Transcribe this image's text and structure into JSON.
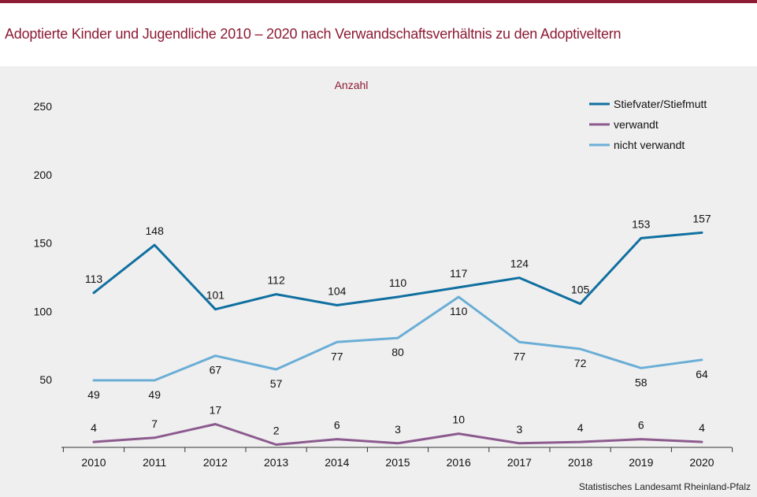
{
  "title": "Adoptierte Kinder und Jugendliche 2010 – 2020 nach Verwandschaftsverhältnis zu den Adoptiveltern",
  "source": "Statistisches Landesamt  Rheinland-Pfalz",
  "colors": {
    "accent": "#8c1b33",
    "background": "#efefef"
  },
  "chart_data": {
    "type": "line",
    "ylabel": "Anzahl",
    "xlabel": "",
    "ylim": [
      0,
      250
    ],
    "yticks": [
      "50",
      "100",
      "150",
      "200",
      "250"
    ],
    "categories": [
      "2010",
      "2011",
      "2012",
      "2013",
      "2014",
      "2015",
      "2016",
      "2017",
      "2018",
      "2019",
      "2020"
    ],
    "grid": false,
    "legend_position": "top-right",
    "series": [
      {
        "name": "Stiefvater/Stiefmutt",
        "color": "#0f6fa0",
        "values": [
          113,
          148,
          101,
          112,
          104,
          110,
          117,
          124,
          105,
          153,
          157
        ],
        "labels": [
          "113",
          "148",
          "101",
          "112",
          "104",
          "110",
          "117",
          "124",
          "105",
          "153",
          "157"
        ],
        "label_position": "above"
      },
      {
        "name": "verwandt",
        "color": "#8c5a8e",
        "values": [
          4,
          7,
          17,
          2,
          6,
          3,
          10,
          3,
          4,
          6,
          4
        ],
        "labels": [
          "4",
          "7",
          "17",
          "2",
          "6",
          "3",
          "10",
          "3",
          "4",
          "6",
          "4"
        ],
        "label_position": "above"
      },
      {
        "name": "nicht verwandt",
        "color": "#6aaed6",
        "values": [
          49,
          49,
          67,
          57,
          77,
          80,
          110,
          77,
          72,
          58,
          64
        ],
        "labels": [
          "49",
          "49",
          "67",
          "57",
          "77",
          "80",
          "110",
          "77",
          "72",
          "58",
          "64"
        ],
        "label_position": "below"
      }
    ]
  }
}
